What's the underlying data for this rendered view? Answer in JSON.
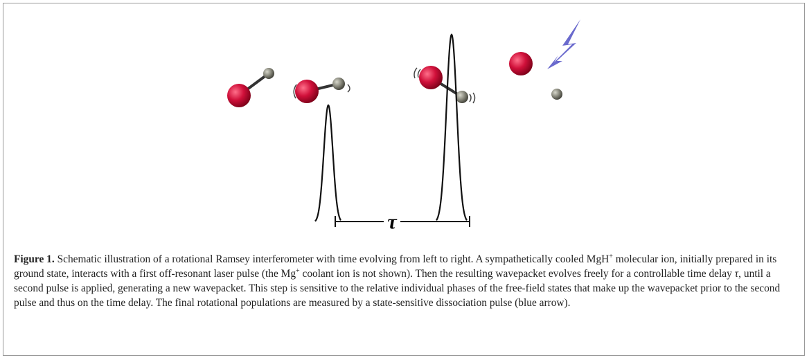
{
  "figure": {
    "tau_label": "τ",
    "caption_label": "Figure 1.",
    "caption_parts": [
      " Schematic illustration of a rotational Ramsey interferometer with time evolving from left to right. A sympathetically cooled MgH",
      "+",
      " molecular ion, initially prepared in its ground state, interacts with a first off-resonant laser pulse (the Mg",
      "+",
      " coolant ion is not shown). Then the resulting wavepacket evolves freely for a controllable time delay ",
      "τ",
      ", until a second pulse is applied, generating a new wavepacket. This step is sensitive to the relative individual phases of the free-field states that make up the wavepacket prior to the second pulse and thus on the time delay. The final rotational populations are measured by a state-sensitive dissociation pulse (blue arrow)."
    ]
  }
}
